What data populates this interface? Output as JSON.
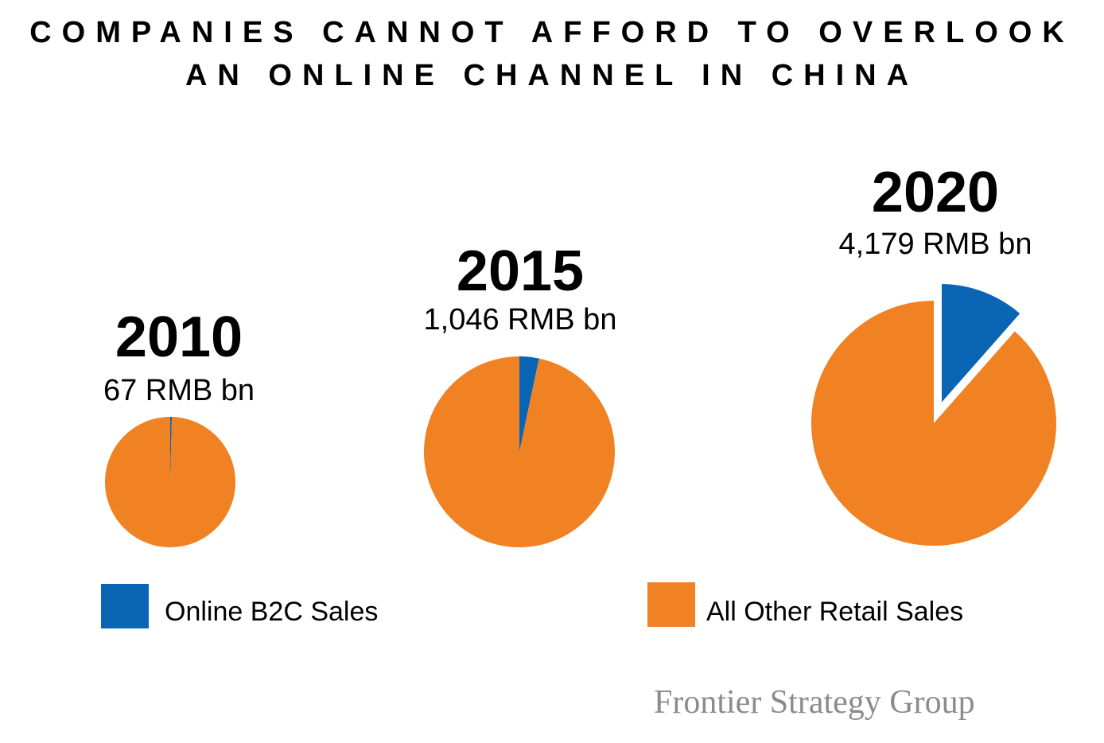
{
  "title": {
    "line1": "COMPANIES CANNOT AFFORD TO OVERLOOK",
    "line2": "AN ONLINE CHANNEL IN CHINA"
  },
  "colors": {
    "online": "#0a64b4",
    "other": "#f08224"
  },
  "chart_data": [
    {
      "type": "pie",
      "title": "2010",
      "subtitle": "67 RMB bn",
      "labels": [
        "Online B2C Sales",
        "All Other Retail Sales"
      ],
      "values": [
        0.4,
        99.6
      ],
      "exploded": [
        false,
        false
      ]
    },
    {
      "type": "pie",
      "title": "2015",
      "subtitle": "1,046 RMB bn",
      "labels": [
        "Online B2C Sales",
        "All Other Retail Sales"
      ],
      "values": [
        3.3,
        96.7
      ],
      "exploded": [
        false,
        false
      ]
    },
    {
      "type": "pie",
      "title": "2020",
      "subtitle": "4,179 RMB bn",
      "labels": [
        "Online B2C Sales",
        "All Other Retail Sales"
      ],
      "values": [
        11.5,
        88.5
      ],
      "exploded": [
        true,
        false
      ]
    }
  ],
  "legend": [
    {
      "label": "Online B2C Sales",
      "color": "#0a64b4"
    },
    {
      "label": "All Other Retail Sales",
      "color": "#f08224"
    }
  ],
  "brand": "Frontier Strategy Group"
}
